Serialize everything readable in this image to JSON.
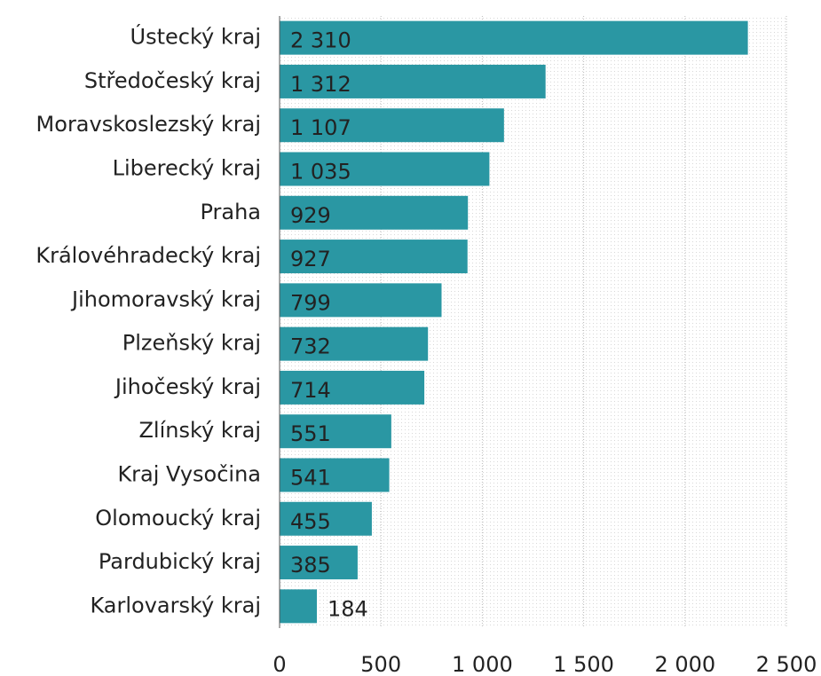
{
  "chart_data": {
    "type": "barh",
    "categories": [
      "Ústecký kraj",
      "Středočeský kraj",
      "Moravskoslezský kraj",
      "Liberecký kraj",
      "Praha",
      "Královéhradecký kraj",
      "Jihomoravský kraj",
      "Plzeňský kraj",
      "Jihočeský kraj",
      "Zlínský kraj",
      "Kraj Vysočina",
      "Olomoucký kraj",
      "Pardubický kraj",
      "Karlovarský kraj"
    ],
    "values": [
      2310,
      1312,
      1107,
      1035,
      929,
      927,
      799,
      732,
      714,
      551,
      541,
      455,
      385,
      184
    ],
    "value_labels": [
      "2 310",
      "1 312",
      "1 107",
      "1 035",
      "929",
      "927",
      "799",
      "732",
      "714",
      "551",
      "541",
      "455",
      "385",
      "184"
    ],
    "color": "#2a97a3",
    "xlim": [
      0,
      2500
    ],
    "xticks": [
      0,
      500,
      {
        "value": 1000,
        "label": "1 000"
      },
      {
        "value": 1500,
        "label": "1 500"
      },
      {
        "value": 2000,
        "label": "2 000"
      },
      {
        "value": 2500,
        "label": "2 500"
      }
    ],
    "grid": true
  }
}
